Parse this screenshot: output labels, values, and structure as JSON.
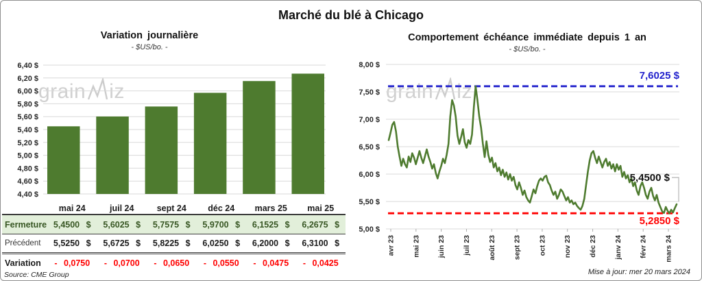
{
  "title": "Marché du blé à Chicago",
  "watermark": {
    "part1": "grain",
    "part2": "iz"
  },
  "left_panel": {
    "title": "Variation journalière",
    "subtitle": "- $US/bo. -",
    "source": "Source: CME Group",
    "table": {
      "columns": [
        "mai 24",
        "juil 24",
        "sept 24",
        "déc 24",
        "mars 25",
        "mai 25"
      ],
      "rows": [
        {
          "key": "close",
          "label": "Fermeture",
          "values": [
            "5,4500 $",
            "5,6025 $",
            "5,7575 $",
            "5,9700 $",
            "6,1525 $",
            "6,2675 $"
          ]
        },
        {
          "key": "prev",
          "label": "Précédent",
          "values": [
            "5,5250 $",
            "5,6725 $",
            "5,8225 $",
            "6,0250 $",
            "6,2000 $",
            "6,3100 $"
          ]
        },
        {
          "key": "var",
          "label": "Variation",
          "values": [
            "- 0,0750",
            "- 0,0700",
            "- 0,0650",
            "- 0,0550",
            "- 0,0475",
            "- 0,0425"
          ]
        }
      ]
    }
  },
  "right_panel": {
    "title": "Comportement échéance immédiate depuis 1 an",
    "subtitle": "- $US/bo. -",
    "max_label": "7,6025 $",
    "last_label": "5,4500 $",
    "min_label": "5,2850 $",
    "updated": "Mise à jour: mer 20 mars 2024"
  },
  "colors": {
    "bar_green": "#4e7b2f",
    "line_green": "#4e7b2f",
    "grid": "#d9d9d9",
    "blue": "#2121cc",
    "red": "#ff0000",
    "table_green_bg": "#e2efda",
    "table_green_text": "#375623",
    "watermark": "#d0d0d0",
    "axis_text": "#262626"
  },
  "chart_data": [
    {
      "type": "bar",
      "title": "Variation journalière",
      "unit": "$US/bo.",
      "categories": [
        "mai 24",
        "juil 24",
        "sept 24",
        "déc 24",
        "mars 25",
        "mai 25"
      ],
      "values": [
        5.45,
        5.6025,
        5.7575,
        5.97,
        6.1525,
        6.2675
      ],
      "ylim": [
        4.4,
        6.4
      ],
      "y_tick_values": [
        6.4,
        6.2,
        6.0,
        5.8,
        5.6,
        5.4,
        5.2,
        5.0,
        4.8,
        4.6,
        4.4
      ],
      "y_tick_labels": [
        "6,40 $",
        "6,20 $",
        "6,00 $",
        "5,80 $",
        "5,60 $",
        "5,40 $",
        "5,20 $",
        "5,00 $",
        "4,80 $",
        "4,60 $",
        "4,40 $"
      ],
      "grid": true,
      "legend": false
    },
    {
      "type": "line",
      "title": "Comportement échéance immédiate depuis 1 an",
      "unit": "$US/bo.",
      "x_ticks": [
        "avr 23",
        "mai 23",
        "juin 23",
        "juil 23",
        "août 23",
        "sept 23",
        "oct 23",
        "nov 23",
        "déc 23",
        "janv 24",
        "févr 24",
        "mars 24"
      ],
      "ylim": [
        5.0,
        8.0
      ],
      "y_tick_values": [
        8.0,
        7.5,
        7.0,
        6.5,
        6.0,
        5.5,
        5.0
      ],
      "y_tick_labels": [
        "8,00 $",
        "7,50 $",
        "7,00 $",
        "6,50 $",
        "6,00 $",
        "5,50 $",
        "5,00 $"
      ],
      "max": 7.6025,
      "min": 5.285,
      "last": 5.45,
      "grid": true,
      "legend": false,
      "values": [
        6.62,
        6.75,
        6.9,
        6.95,
        6.78,
        6.5,
        6.32,
        6.15,
        6.28,
        6.18,
        6.12,
        6.32,
        6.22,
        6.38,
        6.3,
        6.18,
        6.3,
        6.42,
        6.3,
        6.2,
        6.32,
        6.45,
        6.32,
        6.22,
        6.1,
        6.18,
        6.02,
        5.92,
        6.05,
        6.15,
        6.28,
        6.2,
        6.35,
        6.55,
        7.05,
        7.35,
        7.25,
        7.05,
        6.7,
        6.55,
        6.68,
        6.82,
        6.58,
        6.48,
        6.62,
        6.55,
        6.72,
        7.22,
        7.6025,
        7.35,
        7.05,
        6.85,
        6.55,
        6.31,
        6.6,
        6.35,
        6.22,
        6.3,
        6.12,
        6.2,
        6.05,
        6.12,
        5.98,
        6.08,
        5.95,
        6.03,
        5.9,
        6.0,
        5.88,
        5.95,
        5.8,
        5.72,
        5.85,
        5.75,
        5.62,
        5.7,
        5.58,
        5.52,
        5.48,
        5.6,
        5.72,
        5.65,
        5.78,
        5.88,
        5.92,
        5.88,
        5.95,
        5.97,
        5.85,
        5.8,
        5.7,
        5.62,
        5.68,
        5.55,
        5.62,
        5.72,
        5.68,
        5.6,
        5.52,
        5.58,
        5.48,
        5.52,
        5.45,
        5.48,
        5.42,
        5.38,
        5.35,
        5.42,
        5.55,
        5.8,
        6.05,
        6.25,
        6.38,
        6.42,
        6.3,
        6.2,
        6.32,
        6.22,
        6.12,
        6.22,
        6.28,
        6.15,
        6.22,
        6.1,
        6.18,
        6.05,
        6.18,
        6.08,
        6.15,
        5.95,
        6.04,
        5.92,
        5.98,
        5.85,
        5.92,
        5.78,
        5.85,
        5.7,
        5.62,
        5.78,
        5.85,
        5.75,
        5.62,
        5.55,
        5.68,
        5.75,
        5.6,
        5.52,
        5.62,
        5.48,
        5.4,
        5.32,
        5.29,
        5.4,
        5.33,
        5.285,
        5.35,
        5.3,
        5.38,
        5.45
      ]
    }
  ]
}
